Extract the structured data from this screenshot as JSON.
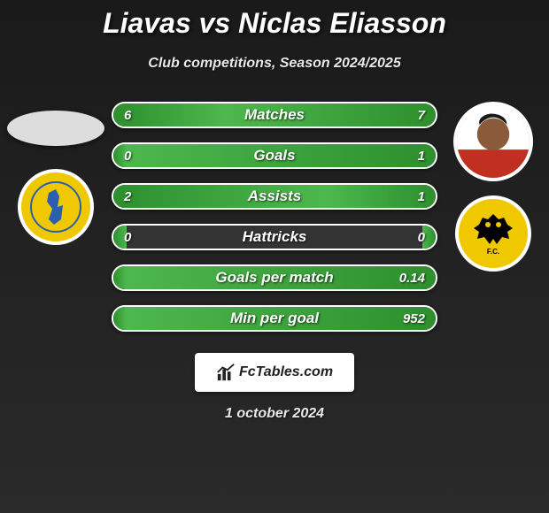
{
  "header": {
    "title": "Liavas vs Niclas Eliasson",
    "subtitle": "Club competitions, Season 2024/2025"
  },
  "players": {
    "left": {
      "name": "Liavas",
      "avatar_bg": "#dddddd",
      "club_name": "Panetolikos",
      "club_bg": "#f0c800",
      "club_figure_color": "#2a5fb0"
    },
    "right": {
      "name": "Niclas Eliasson",
      "avatar_bg": "#e8d0c0",
      "club_name": "AEK",
      "club_bg": "#f0c800",
      "club_eagle_color": "#000000"
    }
  },
  "stats": {
    "type": "diverging-bar",
    "bar_bg": "#333333",
    "bar_border": "#ffffff",
    "fill_gradient": [
      "#2d8f2d",
      "#4db84d"
    ],
    "label_color": "#ffffff",
    "label_fontsize": 17,
    "value_fontsize": 15,
    "rows": [
      {
        "label": "Matches",
        "left": "6",
        "right": "7",
        "left_pct": 35,
        "right_pct": 65
      },
      {
        "label": "Goals",
        "left": "0",
        "right": "1",
        "left_pct": 4,
        "right_pct": 96
      },
      {
        "label": "Assists",
        "left": "2",
        "right": "1",
        "left_pct": 66,
        "right_pct": 34
      },
      {
        "label": "Hattricks",
        "left": "0",
        "right": "0",
        "left_pct": 4,
        "right_pct": 4
      },
      {
        "label": "Goals per match",
        "left": "",
        "right": "0.14",
        "left_pct": 4,
        "right_pct": 96
      },
      {
        "label": "Min per goal",
        "left": "",
        "right": "952",
        "left_pct": 4,
        "right_pct": 96
      }
    ]
  },
  "footer": {
    "site": "FcTables.com",
    "date": "1 october 2024"
  }
}
